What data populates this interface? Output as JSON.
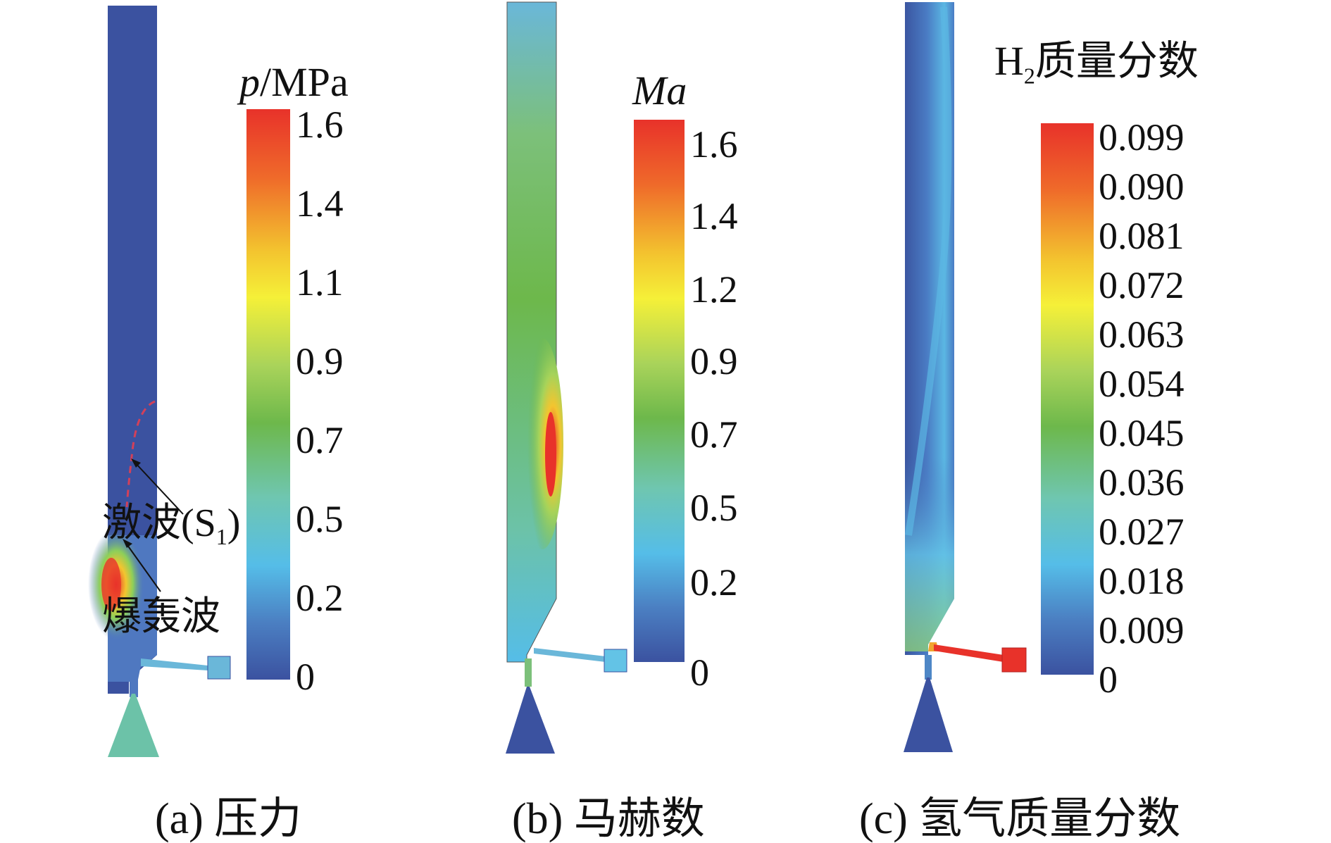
{
  "panels": [
    {
      "caption": "(a) 压力",
      "colorbar": {
        "title_italic": "p",
        "title_rest": "/MPa",
        "ticks": [
          "1.6",
          "1.4",
          "1.1",
          "0.9",
          "0.7",
          "0.5",
          "0.2",
          "0"
        ]
      },
      "annotations": {
        "shock": "激波(S",
        "shock_sub": "1",
        "shock_close": ")",
        "detonation": "爆轰波"
      }
    },
    {
      "caption": "(b) 马赫数",
      "colorbar": {
        "title_italic": "Ma",
        "ticks": [
          "1.6",
          "1.4",
          "1.2",
          "0.9",
          "0.7",
          "0.5",
          "0.2",
          "0"
        ]
      }
    },
    {
      "caption": "(c) 氢气质量分数",
      "colorbar": {
        "title_main": "H",
        "title_sub": "2",
        "title_rest": "质量分数",
        "ticks": [
          "0.099",
          "0.090",
          "0.081",
          "0.072",
          "0.063",
          "0.054",
          "0.045",
          "0.036",
          "0.027",
          "0.018",
          "0.009",
          "0"
        ]
      }
    }
  ],
  "colormap": [
    "#e8322a",
    "#f07d2b",
    "#f2d92e",
    "#f5f038",
    "#a6d35a",
    "#6db84b",
    "#6cc2a8",
    "#63c3e6",
    "#4e87c6",
    "#3b56a1"
  ]
}
